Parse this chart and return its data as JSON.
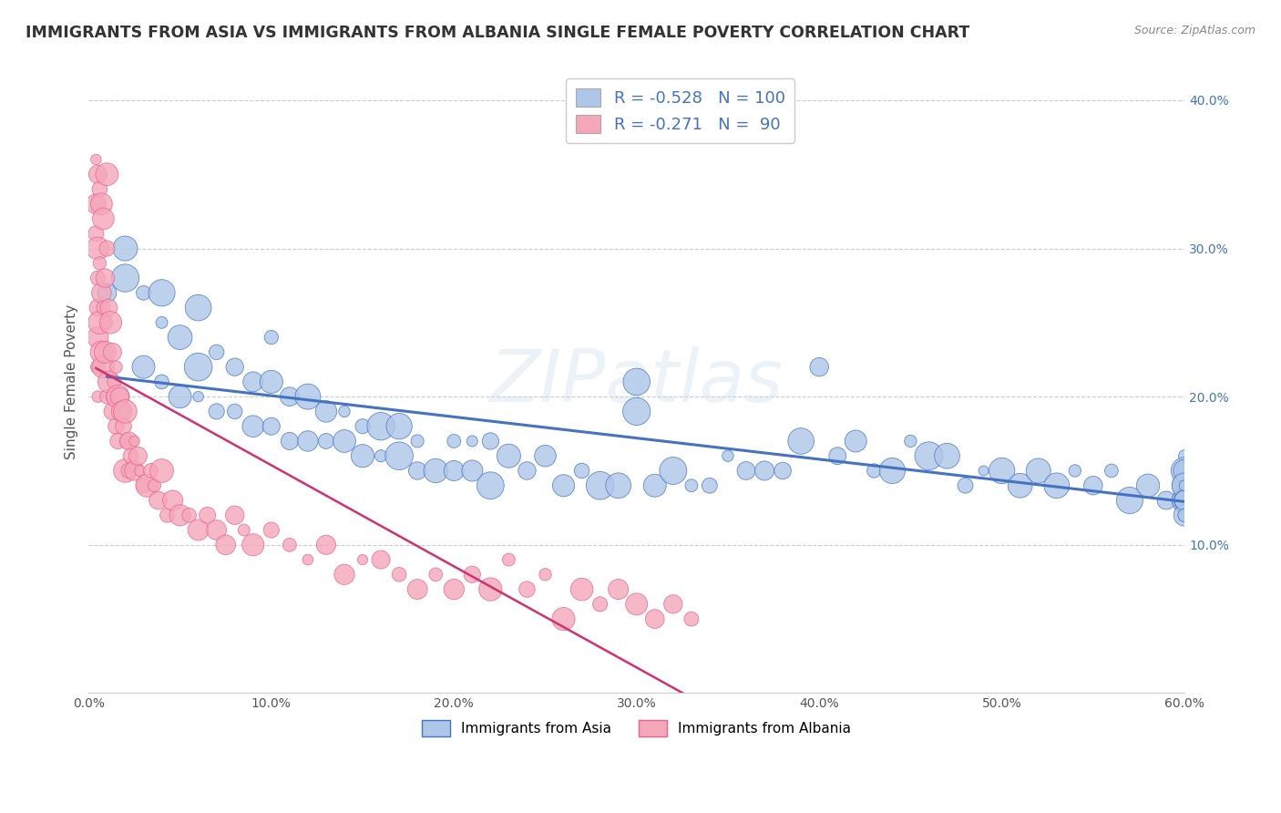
{
  "title": "IMMIGRANTS FROM ASIA VS IMMIGRANTS FROM ALBANIA SINGLE FEMALE POVERTY CORRELATION CHART",
  "source": "Source: ZipAtlas.com",
  "ylabel": "Single Female Poverty",
  "legend_label1": "Immigrants from Asia",
  "legend_label2": "Immigrants from Albania",
  "R1": -0.528,
  "N1": 100,
  "R2": -0.271,
  "N2": 90,
  "x_min": 0.0,
  "x_max": 0.6,
  "y_min": 0.0,
  "y_max": 0.42,
  "y_ticks": [
    0.1,
    0.2,
    0.3,
    0.4
  ],
  "y_tick_labels": [
    "10.0%",
    "20.0%",
    "30.0%",
    "40.0%"
  ],
  "x_ticks": [
    0.0,
    0.1,
    0.2,
    0.3,
    0.4,
    0.5,
    0.6
  ],
  "x_tick_labels": [
    "0.0%",
    "10.0%",
    "20.0%",
    "30.0%",
    "40.0%",
    "50.0%",
    "60.0%"
  ],
  "color_asia": "#aec6e8",
  "color_albania": "#f4a7b9",
  "trend_color_asia": "#4472c4",
  "trend_color_albania": "#d43070",
  "background_color": "#ffffff",
  "seed": 42,
  "asia_x": [
    0.01,
    0.02,
    0.02,
    0.03,
    0.03,
    0.04,
    0.04,
    0.04,
    0.05,
    0.05,
    0.06,
    0.06,
    0.06,
    0.07,
    0.07,
    0.08,
    0.08,
    0.09,
    0.09,
    0.1,
    0.1,
    0.1,
    0.11,
    0.11,
    0.12,
    0.12,
    0.13,
    0.13,
    0.14,
    0.14,
    0.15,
    0.15,
    0.16,
    0.16,
    0.17,
    0.17,
    0.18,
    0.18,
    0.19,
    0.2,
    0.2,
    0.21,
    0.21,
    0.22,
    0.22,
    0.23,
    0.24,
    0.25,
    0.26,
    0.27,
    0.28,
    0.29,
    0.3,
    0.3,
    0.31,
    0.32,
    0.33,
    0.34,
    0.35,
    0.36,
    0.37,
    0.38,
    0.39,
    0.4,
    0.41,
    0.42,
    0.43,
    0.44,
    0.45,
    0.46,
    0.47,
    0.48,
    0.49,
    0.5,
    0.51,
    0.52,
    0.53,
    0.54,
    0.55,
    0.56,
    0.57,
    0.58,
    0.59,
    0.6,
    0.6,
    0.6,
    0.6,
    0.6,
    0.6,
    0.6,
    0.6,
    0.6,
    0.6,
    0.6,
    0.6,
    0.6,
    0.6,
    0.6,
    0.6,
    0.6
  ],
  "asia_y": [
    0.27,
    0.28,
    0.3,
    0.22,
    0.27,
    0.21,
    0.25,
    0.27,
    0.2,
    0.24,
    0.2,
    0.22,
    0.26,
    0.19,
    0.23,
    0.19,
    0.22,
    0.18,
    0.21,
    0.18,
    0.21,
    0.24,
    0.17,
    0.2,
    0.17,
    0.2,
    0.17,
    0.19,
    0.17,
    0.19,
    0.16,
    0.18,
    0.16,
    0.18,
    0.16,
    0.18,
    0.15,
    0.17,
    0.15,
    0.15,
    0.17,
    0.15,
    0.17,
    0.14,
    0.17,
    0.16,
    0.15,
    0.16,
    0.14,
    0.15,
    0.14,
    0.14,
    0.19,
    0.21,
    0.14,
    0.15,
    0.14,
    0.14,
    0.16,
    0.15,
    0.15,
    0.15,
    0.17,
    0.22,
    0.16,
    0.17,
    0.15,
    0.15,
    0.17,
    0.16,
    0.16,
    0.14,
    0.15,
    0.15,
    0.14,
    0.15,
    0.14,
    0.15,
    0.14,
    0.15,
    0.13,
    0.14,
    0.13,
    0.16,
    0.15,
    0.14,
    0.13,
    0.14,
    0.15,
    0.13,
    0.12,
    0.14,
    0.13,
    0.15,
    0.14,
    0.13,
    0.12,
    0.13,
    0.14,
    0.12
  ],
  "albania_x": [
    0.004,
    0.004,
    0.004,
    0.005,
    0.005,
    0.005,
    0.005,
    0.005,
    0.005,
    0.005,
    0.006,
    0.006,
    0.006,
    0.007,
    0.007,
    0.007,
    0.008,
    0.008,
    0.008,
    0.009,
    0.009,
    0.01,
    0.01,
    0.01,
    0.01,
    0.011,
    0.011,
    0.012,
    0.012,
    0.013,
    0.013,
    0.014,
    0.015,
    0.015,
    0.016,
    0.016,
    0.017,
    0.018,
    0.019,
    0.02,
    0.02,
    0.021,
    0.022,
    0.022,
    0.023,
    0.025,
    0.025,
    0.027,
    0.028,
    0.03,
    0.032,
    0.034,
    0.036,
    0.038,
    0.04,
    0.043,
    0.046,
    0.05,
    0.055,
    0.06,
    0.065,
    0.07,
    0.075,
    0.08,
    0.085,
    0.09,
    0.1,
    0.11,
    0.12,
    0.13,
    0.14,
    0.15,
    0.16,
    0.17,
    0.18,
    0.19,
    0.2,
    0.21,
    0.22,
    0.23,
    0.24,
    0.25,
    0.26,
    0.27,
    0.28,
    0.29,
    0.3,
    0.31,
    0.32,
    0.33
  ],
  "albania_y": [
    0.36,
    0.33,
    0.31,
    0.35,
    0.3,
    0.28,
    0.26,
    0.24,
    0.22,
    0.2,
    0.34,
    0.29,
    0.25,
    0.33,
    0.27,
    0.23,
    0.32,
    0.26,
    0.22,
    0.28,
    0.23,
    0.35,
    0.3,
    0.25,
    0.2,
    0.26,
    0.21,
    0.25,
    0.2,
    0.23,
    0.19,
    0.21,
    0.22,
    0.18,
    0.2,
    0.17,
    0.2,
    0.19,
    0.18,
    0.19,
    0.15,
    0.17,
    0.17,
    0.15,
    0.16,
    0.17,
    0.15,
    0.16,
    0.15,
    0.14,
    0.14,
    0.15,
    0.14,
    0.13,
    0.15,
    0.12,
    0.13,
    0.12,
    0.12,
    0.11,
    0.12,
    0.11,
    0.1,
    0.12,
    0.11,
    0.1,
    0.11,
    0.1,
    0.09,
    0.1,
    0.08,
    0.09,
    0.09,
    0.08,
    0.07,
    0.08,
    0.07,
    0.08,
    0.07,
    0.09,
    0.07,
    0.08,
    0.05,
    0.07,
    0.06,
    0.07,
    0.06,
    0.05,
    0.06,
    0.05
  ]
}
